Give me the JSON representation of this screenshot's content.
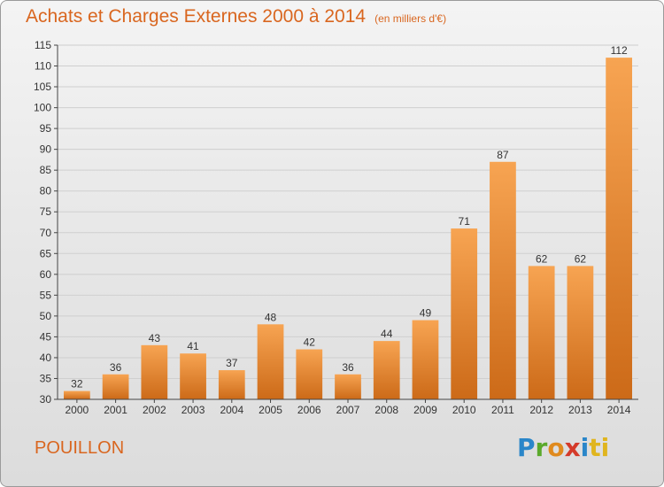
{
  "title": "Achats et Charges Externes 2000 à 2014",
  "unit": "(en milliers d'€)",
  "commune": "POUILLON",
  "logo": {
    "p": "P",
    "r": "r",
    "o": "o",
    "x": "x",
    "i": "i",
    "t": "ti"
  },
  "colors": {
    "bar_top": "#f7a452",
    "bar_bottom": "#cc6a18",
    "text_accent": "#d9661f",
    "grid": "#cfcfcf"
  },
  "chart_data": {
    "type": "bar",
    "categories": [
      "2000",
      "2001",
      "2002",
      "2003",
      "2004",
      "2005",
      "2006",
      "2007",
      "2008",
      "2009",
      "2010",
      "2011",
      "2012",
      "2013",
      "2014"
    ],
    "values": [
      32,
      36,
      43,
      41,
      37,
      48,
      42,
      36,
      44,
      49,
      71,
      87,
      62,
      62,
      112
    ],
    "ylim": [
      30,
      115
    ],
    "yticks": [
      30,
      35,
      40,
      45,
      50,
      55,
      60,
      65,
      70,
      75,
      80,
      85,
      90,
      95,
      100,
      105,
      110,
      115
    ],
    "grid": true
  }
}
